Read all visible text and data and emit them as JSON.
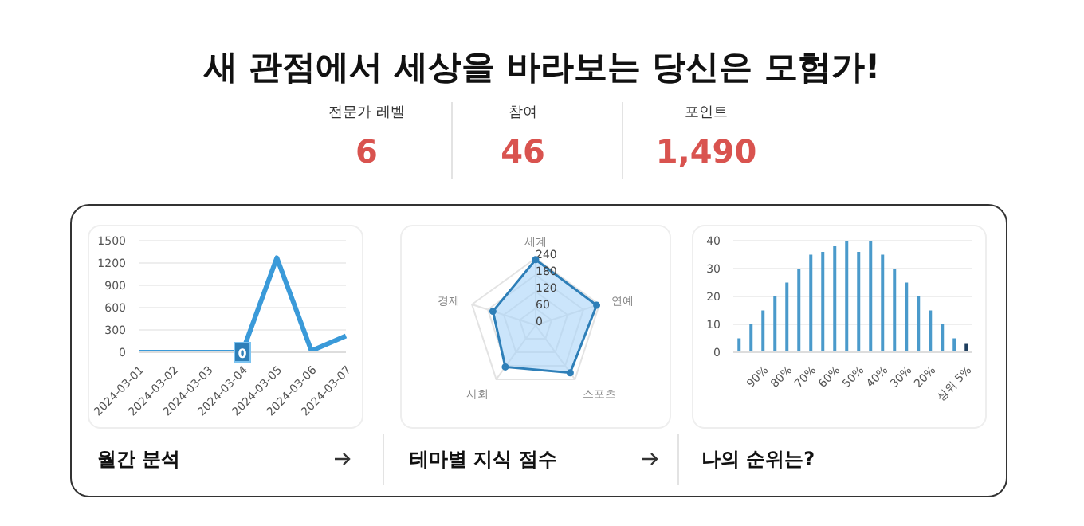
{
  "chart_data": [
    {
      "type": "other",
      "title": "새 관점에서 세상을 바라보는 당신은 모험가!",
      "categories": [
        "전문가 레벨",
        "참여",
        "포인트"
      ],
      "value_labels": [
        "6",
        "46",
        "1,490"
      ]
    },
    {
      "type": "line",
      "title": "월간 분석",
      "categories": [
        "2024-03-01",
        "2024-03-02",
        "2024-03-03",
        "2024-03-04",
        "2024-03-05",
        "2024-03-06",
        "2024-03-07"
      ],
      "series": [
        {
          "color": "#3a9ad9",
          "values": [
            0,
            0,
            0,
            0,
            1270,
            20,
            220
          ],
          "value_labels": [
            null,
            null,
            null,
            "0",
            null,
            null,
            null
          ]
        }
      ],
      "ylim": [
        0,
        1500
      ],
      "yticks": [
        0,
        300,
        600,
        900,
        1200,
        1500
      ],
      "grid": "y",
      "marker": "none"
    },
    {
      "type": "radar",
      "title": "테마별 지식 점수",
      "categories": [
        "세계",
        "연예",
        "스포츠",
        "사회",
        "경제"
      ],
      "series": [
        {
          "color": "#2e7fb8",
          "values": [
            235,
            230,
            211,
            185,
            161
          ]
        }
      ],
      "ylim": [
        0,
        240
      ],
      "yticks": [
        0,
        60,
        120,
        180,
        240
      ],
      "grid": true
    },
    {
      "type": "bar",
      "title": "나의 순위는?",
      "categories": [
        null,
        null,
        "90%",
        null,
        "80%",
        null,
        "70%",
        null,
        "60%",
        null,
        "50%",
        null,
        "40%",
        null,
        "30%",
        null,
        "20%",
        null,
        null,
        "상위 5%"
      ],
      "values": [
        5,
        10,
        15,
        20,
        25,
        30,
        35,
        36,
        38,
        40,
        36,
        40,
        35,
        30,
        25,
        20,
        15,
        10,
        5,
        3
      ],
      "colors": [
        "#4a9acb",
        "#4a9acb",
        "#4a9acb",
        "#4a9acb",
        "#4a9acb",
        "#4a9acb",
        "#4a9acb",
        "#4a9acb",
        "#4a9acb",
        "#4a9acb",
        "#4a9acb",
        "#4a9acb",
        "#4a9acb",
        "#4a9acb",
        "#4a9acb",
        "#4a9acb",
        "#4a9acb",
        "#4a9acb",
        "#4a9acb",
        "#1f3f5f"
      ],
      "ylim": [
        0,
        40
      ],
      "yticks": [
        0,
        10,
        20,
        30,
        40
      ],
      "grid": "y"
    }
  ]
}
